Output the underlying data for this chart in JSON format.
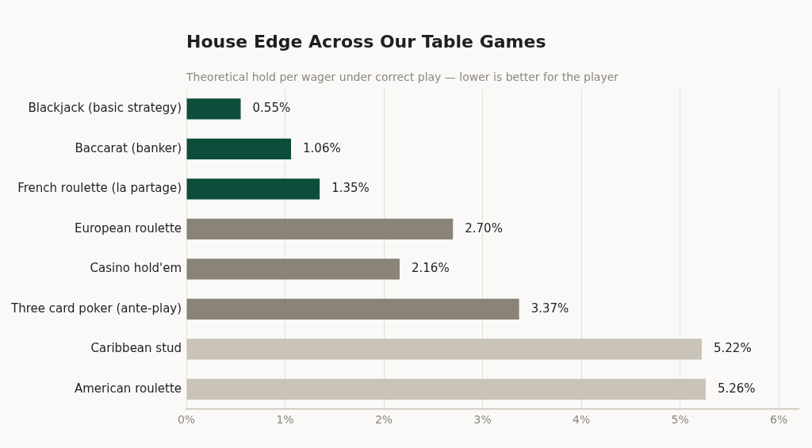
{
  "chart_data": {
    "type": "bar",
    "orientation": "horizontal",
    "title": "House Edge Across Our Table Games",
    "subtitle": "Theoretical hold per wager under correct play — lower is better for the player",
    "categories": [
      "Blackjack (basic strategy)",
      "Baccarat (banker)",
      "French roulette (la partage)",
      "European roulette",
      "Casino hold'em",
      "Three card poker (ante-play)",
      "Caribbean stud",
      "American roulette"
    ],
    "values": [
      0.55,
      1.06,
      1.35,
      2.7,
      2.16,
      3.37,
      5.22,
      5.26
    ],
    "value_labels": [
      "0.55%",
      "1.06%",
      "1.35%",
      "2.70%",
      "2.16%",
      "3.37%",
      "5.22%",
      "5.26%"
    ],
    "colors": [
      "#0d4d3b",
      "#0d4d3b",
      "#0d4d3b",
      "#8a8478",
      "#8a8478",
      "#8a8478",
      "#c9c3b8",
      "#c9c3b8"
    ],
    "xlim": [
      0,
      6.2
    ],
    "xticks": [
      {
        "value": 0,
        "label": "0%"
      },
      {
        "value": 1,
        "label": "1%"
      },
      {
        "value": 2,
        "label": "2%"
      },
      {
        "value": 3,
        "label": "3%"
      },
      {
        "value": 4,
        "label": "4%"
      },
      {
        "value": 5,
        "label": "5%"
      },
      {
        "value": 6,
        "label": "6%"
      }
    ],
    "grid": "x",
    "legend": false
  }
}
